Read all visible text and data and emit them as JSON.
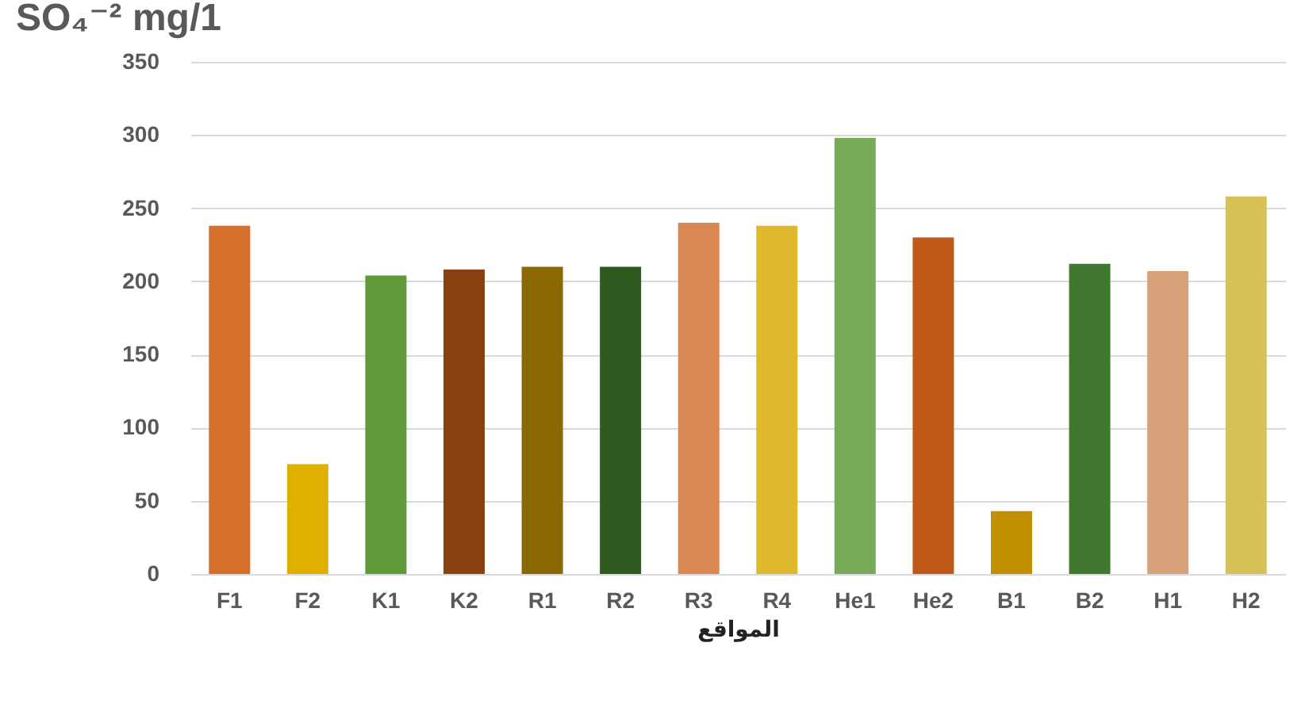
{
  "chart_data": {
    "type": "bar",
    "title": "SO₄⁻² mg/1",
    "xlabel": "المواقع",
    "categories": [
      "F1",
      "F2",
      "K1",
      "K2",
      "R1",
      "R2",
      "R3",
      "R4",
      "He1",
      "He2",
      "B1",
      "B2",
      "H1",
      "H2"
    ],
    "values": [
      238,
      75,
      204,
      208,
      210,
      210,
      240,
      238,
      298,
      230,
      43,
      212,
      207,
      258
    ],
    "colors": [
      "#d4702c",
      "#e0b000",
      "#5e9a3a",
      "#8a4010",
      "#8a6a00",
      "#2e5a20",
      "#d88850",
      "#e0b830",
      "#78aa58",
      "#c05818",
      "#c09000",
      "#407830",
      "#d8a078",
      "#d8c058"
    ],
    "ylim": [
      0,
      350
    ],
    "yticks": [
      0,
      50,
      100,
      150,
      200,
      250,
      300,
      350
    ],
    "grid": "y"
  }
}
